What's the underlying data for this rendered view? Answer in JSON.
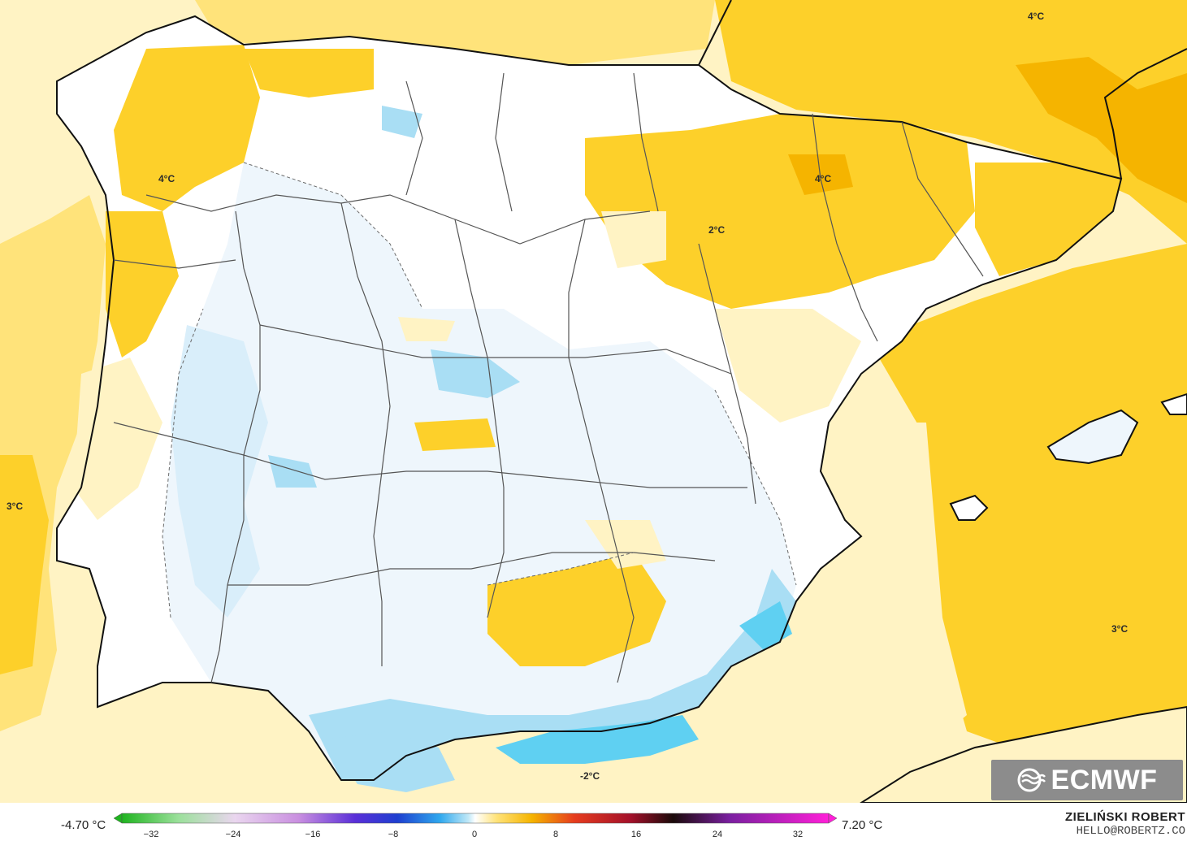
{
  "map": {
    "contour_labels": [
      "4°C",
      "4°C",
      "4°C",
      "2°C",
      "3°C",
      "3°C",
      "-2°C"
    ],
    "land_color": "#ffffff",
    "warm_colors": [
      "#fff3c4",
      "#ffe37a",
      "#fdd02a",
      "#f5b400",
      "#f09a00"
    ],
    "cold_colors": [
      "#eef6fc",
      "#d9eefa",
      "#a9def4",
      "#5fd0f2"
    ]
  },
  "branding": {
    "logo_text": "ECMWF"
  },
  "colorbar": {
    "min_label": "-4.70 °C",
    "max_label": "7.20 °C",
    "ticks": [
      "−32",
      "−24",
      "−16",
      "−8",
      "0",
      "8",
      "16",
      "24",
      "32"
    ]
  },
  "credit": {
    "name": "ZIELIŃSKI ROBERT",
    "email": "HELLO@ROBERTZ.CO"
  }
}
